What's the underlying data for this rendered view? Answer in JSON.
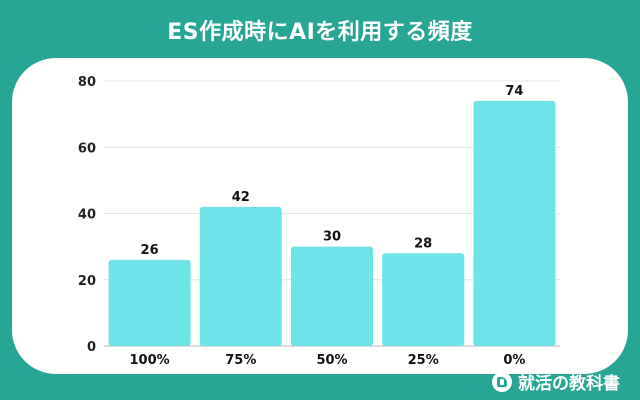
{
  "header": {
    "title": "ES作成時にAIを利用する頻度"
  },
  "brand": {
    "name": "就活の教科書",
    "icon": "book-logo-icon"
  },
  "colors": {
    "background": "#27a595",
    "bar": "#6ee4e8",
    "card": "#ffffff"
  },
  "chart_data": {
    "type": "bar",
    "categories": [
      "100%",
      "75%",
      "50%",
      "25%",
      "0%"
    ],
    "values": [
      26,
      42,
      30,
      28,
      74
    ],
    "ylim": [
      0,
      80
    ],
    "yticks": [
      0,
      20,
      40,
      60,
      80
    ],
    "grid": true,
    "legend": "none"
  }
}
